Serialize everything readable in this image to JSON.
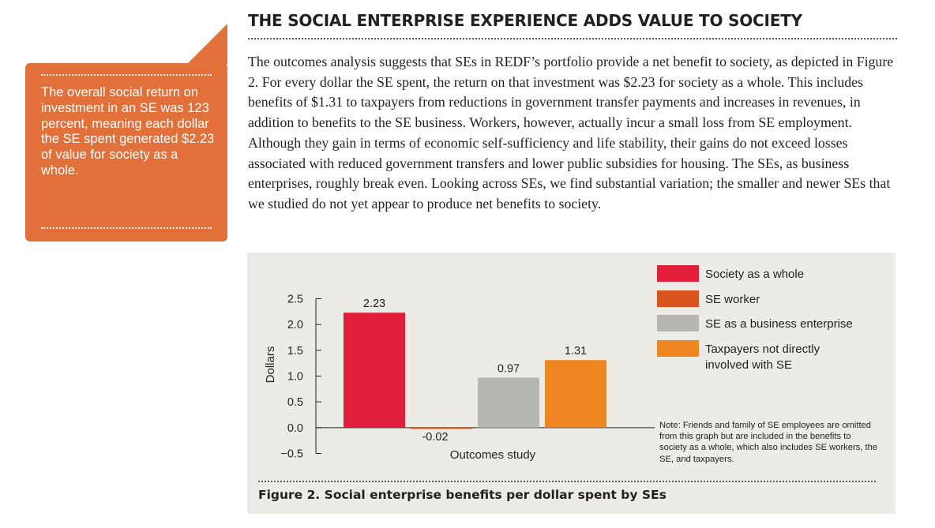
{
  "callout": {
    "text": "The overall social return on investment in an SE was 123 percent, meaning each dollar the SE spent generated $2.23 of value for society as a whole."
  },
  "article": {
    "heading": "THE SOCIAL ENTERPRISE EXPERIENCE ADDS VALUE TO SOCIETY",
    "body": "The outcomes analysis suggests that SEs in REDF’s portfolio provide a net benefit to society, as depicted in Figure 2. For every dollar the SE spent, the return on that investment was $2.23 for society as a whole. This includes benefits of $1.31 to taxpayers from reductions in government transfer payments and increases in revenues, in addition to benefits to the SE business. Workers, however, actually incur a small loss from SE employment. Although they gain in terms of economic self-sufficiency and life stability, their gains do not exceed losses associated with reduced government transfers and lower public subsidies for housing. The SEs, as business enterprises, roughly break even. Looking across SEs, we find substantial variation; the smaller and newer SEs that we studied do not yet appear to produce net benefits to society."
  },
  "figure": {
    "caption": "Figure 2. Social enterprise benefits per dollar spent by SEs",
    "note": "Note: Friends and family of SE employees are omitted from this graph but are included in the benefits to society as a whole, which also includes SE workers, the SE, and taxpayers."
  },
  "chart_data": {
    "type": "bar",
    "title": "",
    "xlabel": "Outcomes study",
    "ylabel": "Dollars",
    "ylim": [
      -0.5,
      2.5
    ],
    "yticks": [
      "2.5",
      "2.0",
      "1.5",
      "1.0",
      "0.5",
      "0.0",
      "−0.5"
    ],
    "ytick_values": [
      2.5,
      2.0,
      1.5,
      1.0,
      0.5,
      0.0,
      -0.5
    ],
    "grid": false,
    "legend_position": "top-right",
    "categories": [
      "Outcomes study"
    ],
    "series": [
      {
        "name": "Society as a whole",
        "values": [
          2.23
        ],
        "label": "2.23",
        "color": "#e21f3a"
      },
      {
        "name": "SE worker",
        "values": [
          -0.02
        ],
        "label": "-0.02",
        "color": "#d9531e"
      },
      {
        "name": "SE as a business enterprise",
        "values": [
          0.97
        ],
        "label": "0.97",
        "color": "#b7b6b0"
      },
      {
        "name": "Taxpayers not directly involved with SE",
        "values": [
          1.31
        ],
        "label": "1.31",
        "color": "#ee8622"
      }
    ]
  }
}
